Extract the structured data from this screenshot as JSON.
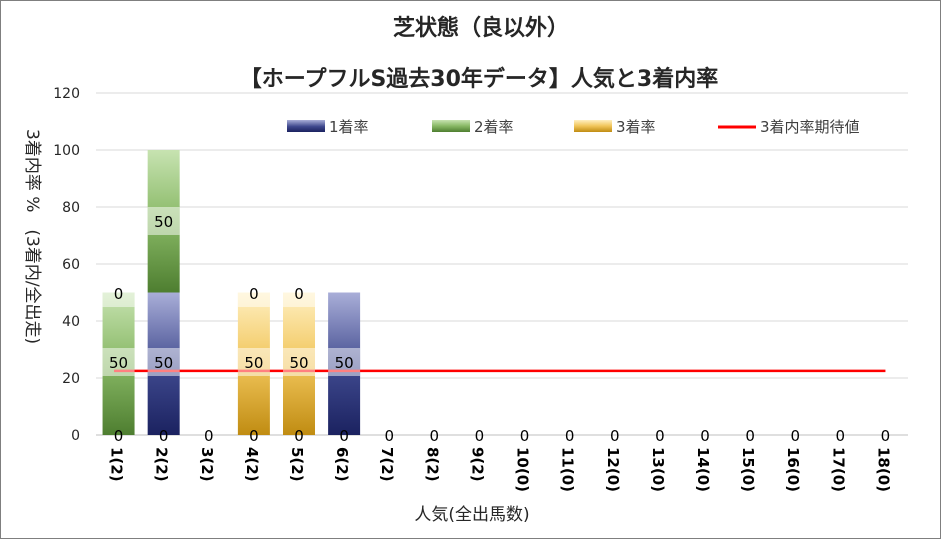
{
  "chart_data": {
    "type": "bar",
    "title": "芝状態（良以外）",
    "subtitle": "【ホープフルS過去30年データ】人気と3着内率",
    "xlabel": "人気(全出馬数)",
    "ylabel": "3着内率 %　(3着内/全出走)",
    "ylim": [
      0,
      120
    ],
    "yticks": [
      0,
      20,
      40,
      60,
      80,
      100,
      120
    ],
    "grid": true,
    "legend_position": "top",
    "categories": [
      "1(2)",
      "2(2)",
      "3(2)",
      "4(2)",
      "5(2)",
      "6(2)",
      "7(2)",
      "8(2)",
      "9(2)",
      "10(0)",
      "11(0)",
      "12(0)",
      "13(0)",
      "14(0)",
      "15(0)",
      "16(0)",
      "17(0)",
      "18(0)"
    ],
    "series": [
      {
        "name": "1着率",
        "color": "#2e3a7f",
        "values": [
          0,
          50,
          0,
          0,
          0,
          50,
          0,
          0,
          0,
          0,
          0,
          0,
          0,
          0,
          0,
          0,
          0,
          0
        ]
      },
      {
        "name": "2着率",
        "color": "#5b8f3a",
        "values": [
          50,
          50,
          0,
          0,
          0,
          0,
          0,
          0,
          0,
          0,
          0,
          0,
          0,
          0,
          0,
          0,
          0,
          0
        ]
      },
      {
        "name": "3着率",
        "color": "#c8951a",
        "values": [
          0,
          0,
          0,
          50,
          50,
          0,
          0,
          0,
          0,
          0,
          0,
          0,
          0,
          0,
          0,
          0,
          0,
          0
        ]
      },
      {
        "name": "3着内率期待値",
        "color": "#ff0000",
        "type": "line",
        "value": 22.5
      }
    ],
    "data_labels": {
      "bottom": [
        "0",
        "0",
        "0",
        "0",
        "0",
        "0",
        "0",
        "0",
        "0",
        "0",
        "0",
        "0",
        "0",
        "0",
        "0",
        "0",
        "0",
        "0"
      ],
      "middle": [
        "50",
        "50",
        "",
        "50",
        "50",
        "50",
        "",
        "",
        "",
        "",
        "",
        "",
        "",
        "",
        "",
        "",
        "",
        ""
      ],
      "top": [
        "0",
        "50",
        "",
        "0",
        "0",
        "",
        "",
        "",
        "",
        "",
        "",
        "",
        "",
        "",
        "",
        "",
        "",
        ""
      ]
    }
  }
}
